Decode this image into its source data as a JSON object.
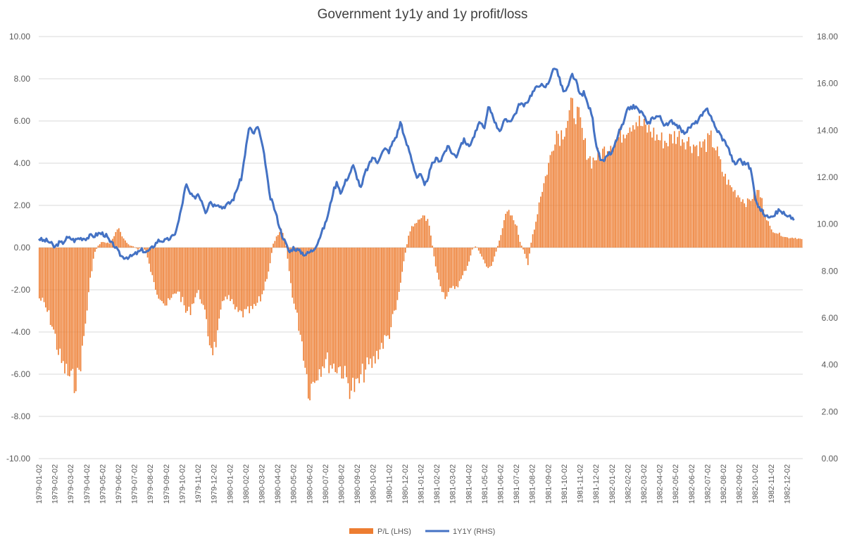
{
  "chart_data": {
    "type": "bar+line",
    "title": "Government 1y1y and 1y profit/loss",
    "left_axis": {
      "label": "P/L (LHS)",
      "min": -10,
      "max": 10,
      "step": 2,
      "tick_labels": [
        "-10.00",
        "-8.00",
        "-6.00",
        "-4.00",
        "-2.00",
        "0.00",
        "2.00",
        "4.00",
        "6.00",
        "8.00",
        "10.00"
      ]
    },
    "right_axis": {
      "label": "1Y1Y (RHS)",
      "min": 0,
      "max": 18,
      "step": 2,
      "tick_labels": [
        "0.00",
        "2.00",
        "4.00",
        "6.00",
        "8.00",
        "10.00",
        "12.00",
        "14.00",
        "16.00",
        "18.00"
      ]
    },
    "x_tick_labels": [
      "1979-01-02",
      "1979-02-02",
      "1979-03-02",
      "1979-04-02",
      "1979-05-02",
      "1979-06-02",
      "1979-07-02",
      "1979-08-02",
      "1979-09-02",
      "1979-10-02",
      "1979-11-02",
      "1979-12-02",
      "1980-01-02",
      "1980-02-02",
      "1980-03-02",
      "1980-04-02",
      "1980-05-02",
      "1980-06-02",
      "1980-07-02",
      "1980-08-02",
      "1980-09-02",
      "1980-10-02",
      "1980-11-02",
      "1980-12-02",
      "1981-01-02",
      "1981-02-02",
      "1981-03-02",
      "1981-04-02",
      "1981-05-02",
      "1981-06-02",
      "1981-07-02",
      "1981-08-02",
      "1981-09-02",
      "1981-10-02",
      "1981-11-02",
      "1981-12-02",
      "1982-01-02",
      "1982-02-02",
      "1982-03-02",
      "1982-04-02",
      "1982-05-02",
      "1982-06-02",
      "1982-07-02",
      "1982-08-02",
      "1982-09-02",
      "1982-10-02",
      "1982-11-02",
      "1982-12-02"
    ],
    "pl_keypoints": {
      "t": [
        0.0,
        0.25,
        0.5,
        0.75,
        1.0,
        1.25,
        1.5,
        1.75,
        2.0,
        2.25,
        2.5,
        2.75,
        3.0,
        3.25,
        3.5,
        3.75,
        4.0,
        4.5,
        5.0,
        5.25,
        5.5,
        5.75,
        6.0,
        6.25,
        6.5,
        6.75,
        7.0,
        7.25,
        7.5,
        7.75,
        8.0,
        8.25,
        8.5,
        8.75,
        9.0,
        9.25,
        9.5,
        9.75,
        10.0,
        10.25,
        10.5,
        10.75,
        11.0,
        11.25,
        11.5,
        11.75,
        12.0,
        12.5,
        13.0,
        13.5,
        14.0,
        14.5,
        14.75,
        15.0,
        15.25,
        15.5,
        15.75,
        16.0,
        16.5,
        17.0,
        17.5,
        18.0,
        18.5,
        19.0,
        19.5,
        20.0,
        20.5,
        21.0,
        21.5,
        22.0,
        22.25,
        22.5,
        23.0,
        23.25,
        23.5,
        23.75,
        24.0,
        24.5,
        25.0,
        25.5,
        26.0,
        26.5,
        27.0,
        27.25,
        27.5,
        27.75,
        28.0,
        28.25,
        28.5,
        28.75,
        29.0,
        29.25,
        29.5,
        29.75,
        30.0,
        30.25,
        30.5,
        30.75,
        31.0,
        31.25,
        31.5,
        31.75,
        32.0,
        32.25,
        32.5,
        32.75,
        33.0,
        33.25,
        33.5,
        33.75,
        34.0,
        34.25,
        34.5,
        34.75,
        35.0,
        35.5,
        36.0,
        36.5,
        37.0,
        37.5,
        38.0,
        38.5,
        39.0,
        39.5,
        40.0,
        40.5,
        41.0,
        41.5,
        42.0,
        42.25,
        42.5,
        42.75,
        43.0,
        43.5,
        44.0,
        44.5,
        45.0,
        45.25,
        45.5,
        45.75,
        46.0,
        46.5,
        47.0,
        47.5,
        48.0
      ],
      "v": [
        -2.5,
        -2.7,
        -3.1,
        -3.6,
        -4.3,
        -5.2,
        -5.9,
        -6.2,
        -6.5,
        -6.7,
        -6.4,
        -5.2,
        -3.4,
        -1.6,
        -0.3,
        0.1,
        0.3,
        0.2,
        1.0,
        0.6,
        0.3,
        0.1,
        0.05,
        -0.1,
        0.05,
        -0.2,
        -1.0,
        -1.8,
        -2.3,
        -2.5,
        -2.9,
        -2.7,
        -2.4,
        -2.1,
        -2.6,
        -3.2,
        -3.2,
        -2.6,
        -2.2,
        -2.6,
        -3.6,
        -4.7,
        -5.1,
        -4.4,
        -3.1,
        -2.3,
        -2.6,
        -3.3,
        -3.3,
        -3.1,
        -2.5,
        -1.0,
        0.2,
        0.6,
        1.0,
        0.4,
        -1.2,
        -2.6,
        -4.4,
        -7.2,
        -6.2,
        -5.6,
        -5.9,
        -6.0,
        -6.9,
        -7.0,
        -6.1,
        -5.8,
        -4.9,
        -4.4,
        -3.6,
        -3.0,
        -0.5,
        0.6,
        1.1,
        1.3,
        1.6,
        1.4,
        -1.2,
        -2.4,
        -2.1,
        -1.7,
        -0.8,
        -0.1,
        0.1,
        -0.3,
        -0.7,
        -1.1,
        -0.8,
        -0.2,
        0.5,
        1.4,
        1.8,
        1.5,
        1.2,
        0.3,
        -0.2,
        -0.8,
        0.5,
        1.3,
        2.5,
        3.2,
        4.0,
        4.8,
        5.9,
        5.6,
        5.9,
        6.4,
        7.0,
        6.8,
        6.3,
        5.3,
        4.7,
        4.3,
        4.5,
        4.8,
        5.3,
        5.5,
        6.1,
        6.4,
        6.0,
        5.8,
        5.4,
        5.3,
        5.6,
        5.5,
        5.2,
        5.0,
        5.2,
        5.4,
        5.1,
        4.4,
        3.7,
        3.0,
        2.6,
        2.2,
        2.7,
        2.8,
        2.2,
        1.5,
        0.9,
        0.7,
        0.5,
        0.5,
        0.4,
        0.3,
        0.2
      ],
      "note": "P/L values in LHS units at fractional month positions (t=0 at 1979-01-02, t=48 at end of 1982-12)"
    },
    "rate_keypoints": {
      "t": [
        0.0,
        0.25,
        0.5,
        0.75,
        1.0,
        1.25,
        1.5,
        1.75,
        2.0,
        2.25,
        2.5,
        2.75,
        3.0,
        3.25,
        3.5,
        3.75,
        4.0,
        4.25,
        4.5,
        4.75,
        5.0,
        5.25,
        5.5,
        5.75,
        6.0,
        6.25,
        6.5,
        6.75,
        7.0,
        7.25,
        7.5,
        7.75,
        8.0,
        8.25,
        8.5,
        8.75,
        9.0,
        9.25,
        9.5,
        9.75,
        10.0,
        10.25,
        10.5,
        10.75,
        11.0,
        11.25,
        11.5,
        11.75,
        12.0,
        12.25,
        12.5,
        12.75,
        13.0,
        13.25,
        13.5,
        13.75,
        14.0,
        14.25,
        14.5,
        14.75,
        15.0,
        15.25,
        15.5,
        15.75,
        16.0,
        16.25,
        16.5,
        16.75,
        17.0,
        17.25,
        17.5,
        17.75,
        18.0,
        18.25,
        18.5,
        18.75,
        19.0,
        19.25,
        19.5,
        19.75,
        20.0,
        20.25,
        20.5,
        20.75,
        21.0,
        21.25,
        21.5,
        21.75,
        22.0,
        22.25,
        22.5,
        22.75,
        23.0,
        23.25,
        23.5,
        23.75,
        24.0,
        24.25,
        24.5,
        24.75,
        25.0,
        25.25,
        25.5,
        25.75,
        26.0,
        26.25,
        26.5,
        26.75,
        27.0,
        27.25,
        27.5,
        27.75,
        28.0,
        28.25,
        28.5,
        28.75,
        29.0,
        29.25,
        29.5,
        29.75,
        30.0,
        30.25,
        30.5,
        30.75,
        31.0,
        31.25,
        31.5,
        31.75,
        32.0,
        32.25,
        32.5,
        32.75,
        33.0,
        33.25,
        33.5,
        33.75,
        34.0,
        34.25,
        34.5,
        34.75,
        35.0,
        35.25,
        35.5,
        35.75,
        36.0,
        36.25,
        36.5,
        36.75,
        37.0,
        37.25,
        37.5,
        37.75,
        38.0,
        38.25,
        38.5,
        38.75,
        39.0,
        39.25,
        39.5,
        39.75,
        40.0,
        40.25,
        40.5,
        40.75,
        41.0,
        41.25,
        41.5,
        41.75,
        42.0,
        42.25,
        42.5,
        42.75,
        43.0,
        43.25,
        43.5,
        43.75,
        44.0,
        44.25,
        44.5,
        44.75,
        45.0,
        45.25,
        45.5,
        45.75,
        46.0,
        46.25,
        46.5,
        46.75,
        47.0,
        47.25,
        47.5,
        47.75,
        48.0
      ],
      "v": [
        9.4,
        9.3,
        9.3,
        9.2,
        9.0,
        9.2,
        9.2,
        9.4,
        9.4,
        9.3,
        9.4,
        9.4,
        9.4,
        9.5,
        9.5,
        9.6,
        9.6,
        9.5,
        9.2,
        9.1,
        8.8,
        8.6,
        8.6,
        8.6,
        8.7,
        8.8,
        8.9,
        8.8,
        8.9,
        9.1,
        9.3,
        9.3,
        9.3,
        9.4,
        9.5,
        10.0,
        10.8,
        11.7,
        11.3,
        11.1,
        11.3,
        11.0,
        10.5,
        11.0,
        10.8,
        10.9,
        10.7,
        10.8,
        10.9,
        11.1,
        11.6,
        12.0,
        13.2,
        14.2,
        13.8,
        14.2,
        13.5,
        12.6,
        11.2,
        10.8,
        10.2,
        9.6,
        9.2,
        8.8,
        9.0,
        8.9,
        8.8,
        8.7,
        8.8,
        8.9,
        9.2,
        9.6,
        10.0,
        10.6,
        11.4,
        11.8,
        11.3,
        11.8,
        12.1,
        12.5,
        12.0,
        11.5,
        12.2,
        12.5,
        12.9,
        12.6,
        13.0,
        13.2,
        13.1,
        13.5,
        13.8,
        14.4,
        13.6,
        13.2,
        12.6,
        12.0,
        12.1,
        11.6,
        12.1,
        12.6,
        12.8,
        12.7,
        13.1,
        13.3,
        13.0,
        12.9,
        13.4,
        13.6,
        13.3,
        13.6,
        14.0,
        14.4,
        14.0,
        15.0,
        14.7,
        14.2,
        14.0,
        14.4,
        14.4,
        14.5,
        14.8,
        15.2,
        15.0,
        15.3,
        15.6,
        15.8,
        16.0,
        15.8,
        16.0,
        16.5,
        16.7,
        16.1,
        15.6,
        15.8,
        16.4,
        16.1,
        15.5,
        15.6,
        15.1,
        14.7,
        13.5,
        12.8,
        12.6,
        13.0,
        13.0,
        13.5,
        14.0,
        14.3,
        14.9,
        15.0,
        15.0,
        14.8,
        14.7,
        14.2,
        14.5,
        14.6,
        14.6,
        14.3,
        14.2,
        14.4,
        14.3,
        14.1,
        13.9,
        14.0,
        14.2,
        14.3,
        14.5,
        14.7,
        14.9,
        14.6,
        14.1,
        13.9,
        13.6,
        13.4,
        12.9,
        12.5,
        12.8,
        12.6,
        12.6,
        12.3,
        11.2,
        10.7,
        10.5,
        10.3,
        10.4,
        10.4,
        10.6,
        10.5,
        10.3,
        10.3,
        10.2
      ]
    },
    "bar_color": "#ed7d31",
    "line_color": "#4472c4",
    "legend": {
      "placement": "bottom-center",
      "items": [
        {
          "label": "P/L (LHS)",
          "kind": "bar"
        },
        {
          "label": "1Y1Y (RHS)",
          "kind": "line"
        }
      ]
    }
  }
}
